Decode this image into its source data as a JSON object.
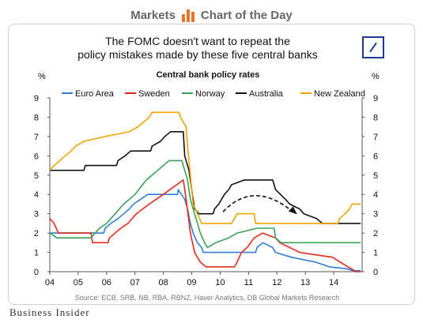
{
  "header": {
    "left": "Markets",
    "right": "Chart of the Day"
  },
  "headline": {
    "line1": "The FOMC doesn't want to repeat the",
    "line2": "policy mistakes made by these five central banks"
  },
  "colors": {
    "Euro Area": "#2f7ed8",
    "Sweden": "#e8291c",
    "Norway": "#3aa35a",
    "Australia": "#111111",
    "New Zealand": "#f0a500",
    "header_accent": "#e8742a",
    "logo": "#1f3c99"
  },
  "brand": "Business Insider",
  "chart_data": {
    "type": "line",
    "title": "Central bank policy rates",
    "ylabel_left": "%",
    "ylabel_right": "%",
    "xlim": [
      2004,
      2015
    ],
    "ylim": [
      0,
      9
    ],
    "y_ticks": [
      0,
      1,
      2,
      3,
      4,
      5,
      6,
      7,
      8,
      9
    ],
    "x_ticks": [
      {
        "v": 2004,
        "label": "04"
      },
      {
        "v": 2005,
        "label": "05"
      },
      {
        "v": 2006,
        "label": "06"
      },
      {
        "v": 2007,
        "label": "07"
      },
      {
        "v": 2008,
        "label": "08"
      },
      {
        "v": 2009,
        "label": "09"
      },
      {
        "v": 2010,
        "label": "10"
      },
      {
        "v": 2011,
        "label": "11"
      },
      {
        "v": 2012,
        "label": "12"
      },
      {
        "v": 2013,
        "label": "13"
      },
      {
        "v": 2014,
        "label": "14"
      }
    ],
    "grid": false,
    "legend_position": "top",
    "source": "Source: ECB, SRB, NB, RBA, RBNZ, Haver Analytics, DB Global Markets Research",
    "series": [
      {
        "name": "Euro Area",
        "points": [
          [
            2004.0,
            2.0
          ],
          [
            2005.9,
            2.0
          ],
          [
            2005.95,
            2.25
          ],
          [
            2006.15,
            2.5
          ],
          [
            2006.4,
            2.75
          ],
          [
            2006.6,
            3.0
          ],
          [
            2006.8,
            3.25
          ],
          [
            2006.95,
            3.5
          ],
          [
            2007.2,
            3.75
          ],
          [
            2007.45,
            4.0
          ],
          [
            2008.5,
            4.0
          ],
          [
            2008.52,
            4.25
          ],
          [
            2008.75,
            3.75
          ],
          [
            2008.85,
            3.25
          ],
          [
            2008.95,
            2.5
          ],
          [
            2009.05,
            2.0
          ],
          [
            2009.2,
            1.5
          ],
          [
            2009.35,
            1.25
          ],
          [
            2009.4,
            1.0
          ],
          [
            2011.25,
            1.0
          ],
          [
            2011.3,
            1.25
          ],
          [
            2011.5,
            1.5
          ],
          [
            2011.85,
            1.25
          ],
          [
            2011.95,
            1.0
          ],
          [
            2012.5,
            0.75
          ],
          [
            2013.35,
            0.5
          ],
          [
            2013.85,
            0.25
          ],
          [
            2014.45,
            0.15
          ],
          [
            2014.7,
            0.05
          ],
          [
            2014.95,
            0.05
          ]
        ]
      },
      {
        "name": "Sweden",
        "points": [
          [
            2004.0,
            2.75
          ],
          [
            2004.15,
            2.5
          ],
          [
            2004.3,
            2.0
          ],
          [
            2005.45,
            2.0
          ],
          [
            2005.5,
            1.5
          ],
          [
            2006.05,
            1.5
          ],
          [
            2006.1,
            1.75
          ],
          [
            2006.5,
            2.25
          ],
          [
            2006.75,
            2.5
          ],
          [
            2007.05,
            3.0
          ],
          [
            2007.5,
            3.5
          ],
          [
            2007.75,
            3.75
          ],
          [
            2008.0,
            4.0
          ],
          [
            2008.7,
            4.75
          ],
          [
            2008.8,
            3.75
          ],
          [
            2008.95,
            2.0
          ],
          [
            2009.1,
            1.0
          ],
          [
            2009.3,
            0.5
          ],
          [
            2009.5,
            0.25
          ],
          [
            2010.5,
            0.25
          ],
          [
            2010.6,
            0.5
          ],
          [
            2010.75,
            1.0
          ],
          [
            2010.95,
            1.25
          ],
          [
            2011.2,
            1.75
          ],
          [
            2011.5,
            2.0
          ],
          [
            2011.95,
            1.75
          ],
          [
            2012.1,
            1.5
          ],
          [
            2012.8,
            1.0
          ],
          [
            2013.95,
            0.75
          ],
          [
            2014.5,
            0.25
          ],
          [
            2014.8,
            0.0
          ],
          [
            2014.95,
            0.0
          ]
        ]
      },
      {
        "name": "Norway",
        "points": [
          [
            2004.0,
            2.0
          ],
          [
            2004.25,
            1.75
          ],
          [
            2005.45,
            1.75
          ],
          [
            2005.75,
            2.25
          ],
          [
            2006.0,
            2.5
          ],
          [
            2006.3,
            3.0
          ],
          [
            2006.6,
            3.5
          ],
          [
            2007.0,
            4.0
          ],
          [
            2007.4,
            4.75
          ],
          [
            2007.8,
            5.25
          ],
          [
            2008.2,
            5.75
          ],
          [
            2008.65,
            5.75
          ],
          [
            2008.75,
            5.25
          ],
          [
            2008.85,
            4.75
          ],
          [
            2008.95,
            3.75
          ],
          [
            2009.1,
            3.0
          ],
          [
            2009.3,
            2.0
          ],
          [
            2009.45,
            1.5
          ],
          [
            2009.55,
            1.25
          ],
          [
            2009.85,
            1.5
          ],
          [
            2010.3,
            1.75
          ],
          [
            2010.6,
            2.0
          ],
          [
            2011.3,
            2.25
          ],
          [
            2011.9,
            2.25
          ],
          [
            2011.95,
            1.75
          ],
          [
            2012.15,
            1.5
          ],
          [
            2014.95,
            1.5
          ]
        ]
      },
      {
        "name": "Australia",
        "points": [
          [
            2004.0,
            5.25
          ],
          [
            2005.2,
            5.25
          ],
          [
            2005.25,
            5.5
          ],
          [
            2006.35,
            5.5
          ],
          [
            2006.4,
            5.75
          ],
          [
            2006.65,
            6.0
          ],
          [
            2006.85,
            6.25
          ],
          [
            2007.55,
            6.25
          ],
          [
            2007.6,
            6.5
          ],
          [
            2007.9,
            6.75
          ],
          [
            2008.05,
            7.0
          ],
          [
            2008.25,
            7.25
          ],
          [
            2008.7,
            7.25
          ],
          [
            2008.75,
            6.0
          ],
          [
            2008.9,
            5.25
          ],
          [
            2009.0,
            4.25
          ],
          [
            2009.1,
            3.25
          ],
          [
            2009.25,
            3.0
          ],
          [
            2009.75,
            3.0
          ],
          [
            2009.8,
            3.25
          ],
          [
            2009.95,
            3.5
          ],
          [
            2010.15,
            4.0
          ],
          [
            2010.3,
            4.25
          ],
          [
            2010.4,
            4.5
          ],
          [
            2010.85,
            4.75
          ],
          [
            2011.85,
            4.75
          ],
          [
            2011.9,
            4.5
          ],
          [
            2011.95,
            4.25
          ],
          [
            2012.3,
            3.75
          ],
          [
            2012.45,
            3.5
          ],
          [
            2012.8,
            3.25
          ],
          [
            2012.95,
            3.0
          ],
          [
            2013.4,
            2.75
          ],
          [
            2013.6,
            2.5
          ],
          [
            2014.95,
            2.5
          ]
        ]
      },
      {
        "name": "New Zealand",
        "points": [
          [
            2004.0,
            5.25
          ],
          [
            2004.15,
            5.5
          ],
          [
            2004.35,
            5.75
          ],
          [
            2004.55,
            6.0
          ],
          [
            2004.75,
            6.25
          ],
          [
            2004.9,
            6.5
          ],
          [
            2005.2,
            6.75
          ],
          [
            2005.95,
            7.0
          ],
          [
            2006.8,
            7.25
          ],
          [
            2007.1,
            7.5
          ],
          [
            2007.3,
            7.75
          ],
          [
            2007.5,
            8.0
          ],
          [
            2007.6,
            8.25
          ],
          [
            2008.55,
            8.25
          ],
          [
            2008.6,
            8.0
          ],
          [
            2008.8,
            7.5
          ],
          [
            2008.85,
            6.5
          ],
          [
            2008.95,
            5.0
          ],
          [
            2009.05,
            3.5
          ],
          [
            2009.2,
            3.0
          ],
          [
            2009.35,
            2.5
          ],
          [
            2010.4,
            2.5
          ],
          [
            2010.5,
            2.75
          ],
          [
            2010.6,
            3.0
          ],
          [
            2011.2,
            3.0
          ],
          [
            2011.25,
            2.5
          ],
          [
            2014.15,
            2.5
          ],
          [
            2014.2,
            2.75
          ],
          [
            2014.4,
            3.0
          ],
          [
            2014.55,
            3.25
          ],
          [
            2014.65,
            3.5
          ],
          [
            2014.95,
            3.5
          ]
        ]
      }
    ]
  }
}
